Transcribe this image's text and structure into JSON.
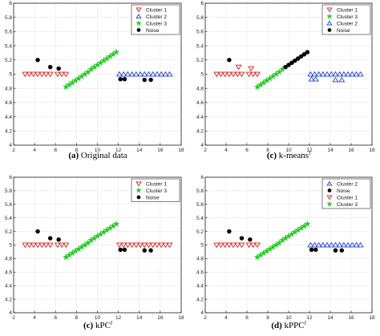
{
  "chart_data": [
    {
      "type": "scatter",
      "caption_label": "(a)",
      "caption_text": "Original data",
      "caption_sup": "",
      "xlim": [
        2,
        18
      ],
      "ylim": [
        4,
        6
      ],
      "xticks": [
        "2",
        "4",
        "6",
        "8",
        "10",
        "12",
        "14",
        "16",
        "18"
      ],
      "yticks": [
        "4",
        "4.2",
        "4.4",
        "4.6",
        "4.8",
        "5",
        "5.2",
        "5.4",
        "5.6",
        "5.8",
        "6"
      ],
      "grid": true,
      "legend_position": "top-right",
      "series": [
        {
          "name": "Cluster 1",
          "marker": "tri-down",
          "color": "#e0201b",
          "x": [
            3.1,
            3.5,
            3.9,
            4.3,
            4.7,
            5.1,
            5.5,
            6.2,
            6.6,
            7.0
          ],
          "y": [
            5,
            5,
            5,
            5,
            5,
            5,
            5,
            5,
            5,
            5
          ]
        },
        {
          "name": "Cluster 2",
          "marker": "tri-up",
          "color": "#1f3fd6",
          "x": [
            12.1,
            12.5,
            12.9,
            13.3,
            13.7,
            14.1,
            14.5,
            14.9,
            15.3,
            15.7,
            16.1,
            16.5,
            16.9
          ],
          "y": [
            5,
            5,
            5,
            5,
            5,
            5,
            5,
            5,
            5,
            5,
            5,
            5,
            5
          ]
        },
        {
          "name": "Cluster 3",
          "marker": "star",
          "color": "#22cc22",
          "x": [
            7.0,
            7.3,
            7.6,
            7.9,
            8.2,
            8.5,
            8.8,
            9.1,
            9.4,
            9.7,
            10.0,
            10.3,
            10.6,
            10.9,
            11.2,
            11.5,
            11.8
          ],
          "y": [
            4.82,
            4.85,
            4.88,
            4.91,
            4.94,
            4.97,
            5.0,
            5.03,
            5.07,
            5.1,
            5.13,
            5.16,
            5.19,
            5.22,
            5.25,
            5.28,
            5.31
          ]
        },
        {
          "name": "Noise",
          "marker": "circle",
          "color": "#000000",
          "x": [
            4.3,
            5.5,
            6.3,
            12.2,
            12.6,
            14.5,
            15.1
          ],
          "y": [
            5.2,
            5.1,
            5.08,
            4.93,
            4.93,
            4.92,
            4.92
          ]
        }
      ]
    },
    {
      "type": "scatter",
      "caption_label": "(c)",
      "caption_text": "k-means",
      "caption_sup": "l",
      "xlim": [
        2,
        18
      ],
      "ylim": [
        4,
        6
      ],
      "xticks": [
        "2",
        "4",
        "6",
        "8",
        "10",
        "12",
        "14",
        "16",
        "18"
      ],
      "yticks": [
        "4",
        "4.2",
        "4.4",
        "4.6",
        "4.8",
        "5",
        "5.2",
        "5.4",
        "5.6",
        "5.8",
        "6"
      ],
      "grid": true,
      "legend_position": "top-right",
      "series": [
        {
          "name": "Cluster 1",
          "marker": "tri-down",
          "color": "#e0201b",
          "x": [
            3.1,
            3.5,
            3.9,
            4.3,
            4.7,
            5.1,
            5.5,
            6.2,
            6.6,
            7.0,
            5.2,
            6.4
          ],
          "y": [
            5,
            5,
            5,
            5,
            5,
            5,
            5,
            5,
            5,
            5,
            5.1,
            5.08
          ]
        },
        {
          "name": "Cluster 3",
          "marker": "star",
          "color": "#22cc22",
          "x": [
            7.0,
            7.3,
            7.6,
            7.9,
            8.2,
            8.5,
            8.8,
            9.1,
            9.4
          ],
          "y": [
            4.82,
            4.85,
            4.88,
            4.91,
            4.94,
            4.97,
            5.0,
            5.03,
            5.07
          ]
        },
        {
          "name": "Cluster 2",
          "marker": "tri-up",
          "color": "#1f3fd6",
          "x": [
            12.1,
            12.5,
            12.9,
            13.3,
            13.7,
            14.1,
            14.5,
            14.9,
            15.3,
            15.7,
            16.1,
            16.5,
            16.9,
            12.2,
            12.6,
            14.5,
            15.1
          ],
          "y": [
            5,
            5,
            5,
            5,
            5,
            5,
            5,
            5,
            5,
            5,
            5,
            5,
            5,
            4.93,
            4.93,
            4.92,
            4.92
          ]
        },
        {
          "name": "Noise",
          "marker": "circle",
          "color": "#000000",
          "x": [
            4.3,
            9.7,
            10.0,
            10.3,
            10.6,
            10.9,
            11.2,
            11.5,
            11.8
          ],
          "y": [
            5.2,
            5.1,
            5.13,
            5.16,
            5.19,
            5.22,
            5.25,
            5.28,
            5.31
          ]
        }
      ]
    },
    {
      "type": "scatter",
      "caption_label": "(c)",
      "caption_text": "kPC",
      "caption_sup": "l",
      "xlim": [
        2,
        18
      ],
      "ylim": [
        4,
        6
      ],
      "xticks": [
        "2",
        "4",
        "6",
        "8",
        "10",
        "12",
        "14",
        "16",
        "18"
      ],
      "yticks": [
        "4",
        "4.2",
        "4.4",
        "4.6",
        "4.8",
        "5",
        "5.2",
        "5.4",
        "5.6",
        "5.8",
        "6"
      ],
      "grid": true,
      "legend_position": "top-right",
      "series": [
        {
          "name": "Cluster 1",
          "marker": "tri-down",
          "color": "#e0201b",
          "x": [
            3.1,
            3.5,
            3.9,
            4.3,
            4.7,
            5.1,
            5.5,
            6.2,
            6.6,
            7.0,
            12.1,
            12.5,
            12.9,
            13.3,
            13.7,
            14.1,
            14.5,
            14.9,
            15.3,
            15.7,
            16.1,
            16.5,
            16.9
          ],
          "y": [
            5,
            5,
            5,
            5,
            5,
            5,
            5,
            5,
            5,
            5,
            5,
            5,
            5,
            5,
            5,
            5,
            5,
            5,
            5,
            5,
            5,
            5,
            5
          ]
        },
        {
          "name": "Cluster 3",
          "marker": "star",
          "color": "#22cc22",
          "x": [
            7.0,
            7.3,
            7.6,
            7.9,
            8.2,
            8.5,
            8.8,
            9.1,
            9.4,
            9.7,
            10.0,
            10.3,
            10.6,
            10.9,
            11.2,
            11.5,
            11.8
          ],
          "y": [
            4.82,
            4.85,
            4.88,
            4.91,
            4.94,
            4.97,
            5.0,
            5.03,
            5.07,
            5.1,
            5.13,
            5.16,
            5.19,
            5.22,
            5.25,
            5.28,
            5.31
          ]
        },
        {
          "name": "Noise",
          "marker": "circle",
          "color": "#000000",
          "x": [
            4.3,
            5.5,
            6.3,
            12.2,
            12.6,
            14.5,
            15.1
          ],
          "y": [
            5.2,
            5.1,
            5.08,
            4.93,
            4.93,
            4.92,
            4.92
          ]
        }
      ]
    },
    {
      "type": "scatter",
      "caption_label": "(d)",
      "caption_text": "kPPC",
      "caption_sup": "l",
      "xlim": [
        2,
        18
      ],
      "ylim": [
        4,
        6
      ],
      "xticks": [
        "2",
        "4",
        "6",
        "8",
        "10",
        "12",
        "14",
        "16",
        "18"
      ],
      "yticks": [
        "4",
        "4.2",
        "4.4",
        "4.6",
        "4.8",
        "5",
        "5.2",
        "5.4",
        "5.6",
        "5.8",
        "6"
      ],
      "grid": true,
      "legend_position": "top-right",
      "series": [
        {
          "name": "Cluster 2",
          "marker": "tri-up",
          "color": "#1f3fd6",
          "x": [
            12.1,
            12.5,
            12.9,
            13.3,
            13.7,
            14.1,
            14.5,
            14.9,
            15.3,
            15.7,
            16.1,
            16.5,
            16.9
          ],
          "y": [
            5,
            5,
            5,
            5,
            5,
            5,
            5,
            5,
            5,
            5,
            5,
            5,
            5
          ]
        },
        {
          "name": "Noise",
          "marker": "circle",
          "color": "#000000",
          "x": [
            4.3,
            5.5,
            6.3,
            12.2,
            12.6,
            14.5,
            15.1
          ],
          "y": [
            5.2,
            5.1,
            5.08,
            4.93,
            4.93,
            4.92,
            4.92
          ]
        },
        {
          "name": "Cluster 1",
          "marker": "tri-down",
          "color": "#e0201b",
          "x": [
            3.1,
            3.5,
            3.9,
            4.3,
            4.7,
            5.1,
            5.5,
            6.2,
            6.6,
            7.0
          ],
          "y": [
            5,
            5,
            5,
            5,
            5,
            5,
            5,
            5,
            5,
            5
          ]
        },
        {
          "name": "Cluster 3",
          "marker": "star",
          "color": "#22cc22",
          "x": [
            7.0,
            7.3,
            7.6,
            7.9,
            8.2,
            8.5,
            8.8,
            9.1,
            9.4,
            9.7,
            10.0,
            10.3,
            10.6,
            10.9,
            11.2,
            11.5,
            11.8
          ],
          "y": [
            4.82,
            4.85,
            4.88,
            4.91,
            4.94,
            4.97,
            5.0,
            5.03,
            5.07,
            5.1,
            5.13,
            5.16,
            5.19,
            5.22,
            5.25,
            5.28,
            5.31
          ]
        }
      ]
    }
  ]
}
